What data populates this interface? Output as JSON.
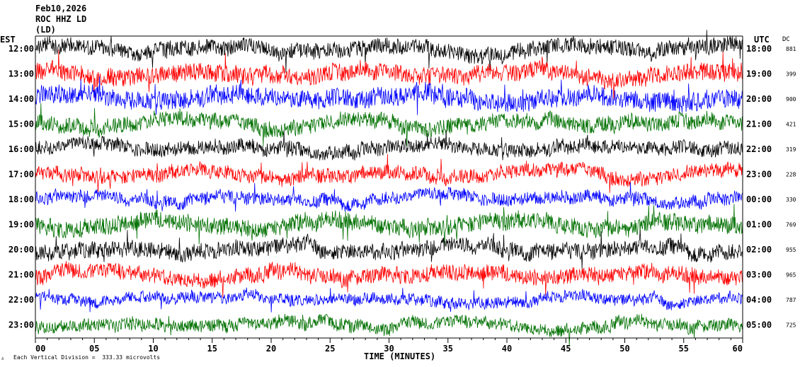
{
  "header": {
    "date": "Feb10,2026",
    "station": "ROC HHZ LD",
    "location": "(LD)"
  },
  "left_tz_label": "EST",
  "right_tz_label": "UTC",
  "dc_header": "DC",
  "footer": {
    "scale_note": "Each Vertical Division =  333.33 microvolts"
  },
  "chart_data": {
    "type": "line",
    "title": "",
    "xlabel": "TIME (MINUTES)",
    "ylabel": "",
    "xlim": [
      0,
      60
    ],
    "x_ticks": [
      "00",
      "05",
      "10",
      "15",
      "20",
      "25",
      "30",
      "35",
      "40",
      "45",
      "50",
      "55",
      "60"
    ],
    "colors": [
      "#000000",
      "#ff0000",
      "#0000ff",
      "#007000"
    ],
    "rows": [
      {
        "est": "12:00",
        "utc": "18:00",
        "dc": "881",
        "color": "#000000",
        "amp": 1.0
      },
      {
        "est": "13:00",
        "utc": "19:00",
        "dc": "399",
        "color": "#ff0000",
        "amp": 1.1
      },
      {
        "est": "14:00",
        "utc": "20:00",
        "dc": "900",
        "color": "#0000ff",
        "amp": 1.2
      },
      {
        "est": "15:00",
        "utc": "21:00",
        "dc": "421",
        "color": "#007000",
        "amp": 1.0
      },
      {
        "est": "16:00",
        "utc": "22:00",
        "dc": "319",
        "color": "#000000",
        "amp": 0.9
      },
      {
        "est": "17:00",
        "utc": "23:00",
        "dc": "228",
        "color": "#ff0000",
        "amp": 0.9
      },
      {
        "est": "18:00",
        "utc": "00:00",
        "dc": "330",
        "color": "#0000ff",
        "amp": 0.8
      },
      {
        "est": "19:00",
        "utc": "01:00",
        "dc": "769",
        "color": "#007000",
        "amp": 1.1
      },
      {
        "est": "20:00",
        "utc": "02:00",
        "dc": "955",
        "color": "#000000",
        "amp": 1.0
      },
      {
        "est": "21:00",
        "utc": "03:00",
        "dc": "965",
        "color": "#ff0000",
        "amp": 1.0
      },
      {
        "est": "22:00",
        "utc": "04:00",
        "dc": "787",
        "color": "#0000ff",
        "amp": 0.7
      },
      {
        "est": "23:00",
        "utc": "05:00",
        "dc": "725",
        "color": "#007000",
        "amp": 0.8
      }
    ]
  }
}
